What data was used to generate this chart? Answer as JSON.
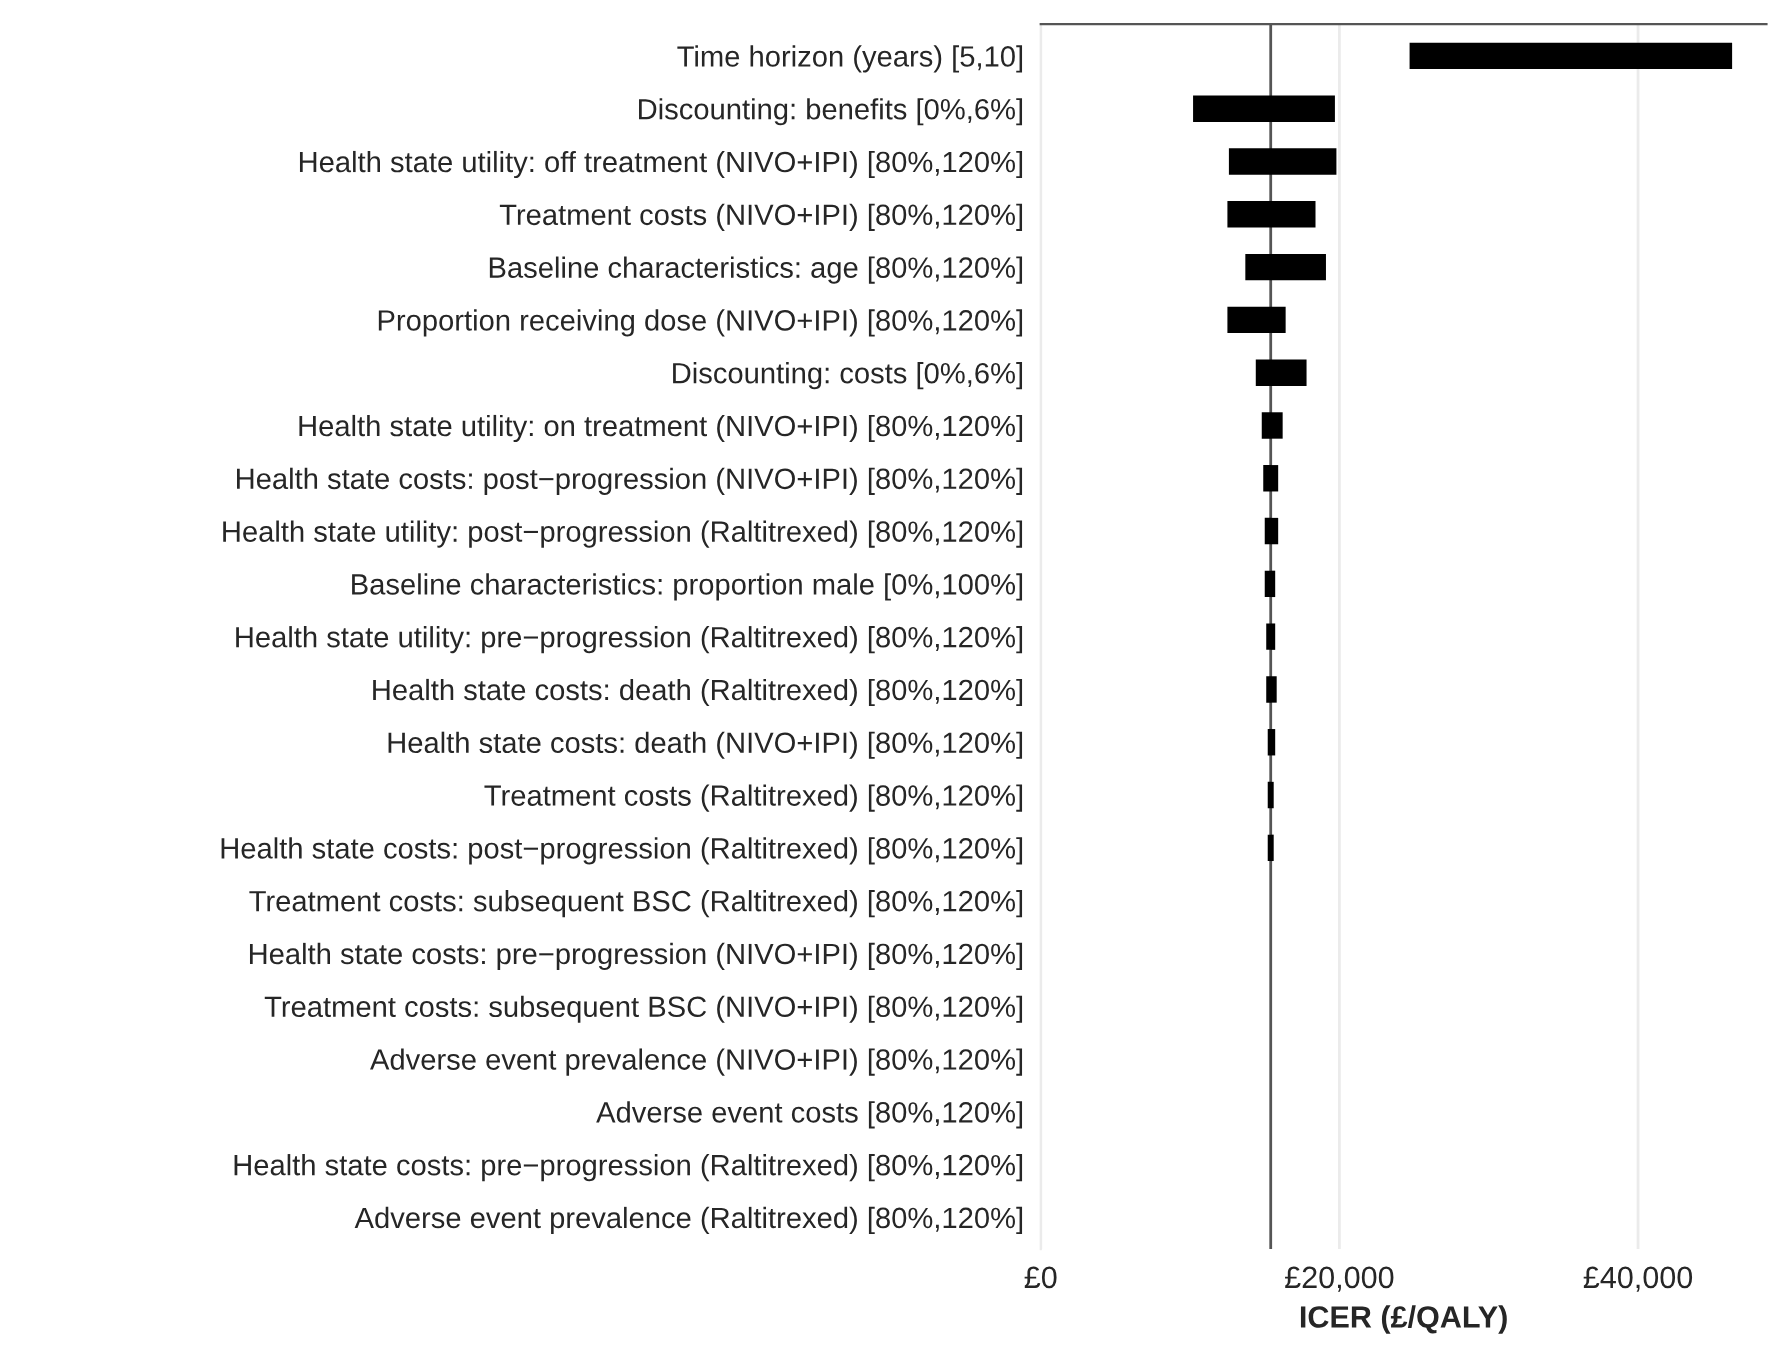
{
  "chart_data": {
    "type": "bar",
    "orientation": "horizontal",
    "xlabel": "ICER (£/QALY)",
    "categories": [
      "Time horizon (years) [5,10]",
      "Discounting: benefits [0%,6%]",
      "Health state utility: off treatment (NIVO+IPI) [80%,120%]",
      "Treatment costs (NIVO+IPI) [80%,120%]",
      "Baseline characteristics: age [80%,120%]",
      "Proportion receiving dose (NIVO+IPI) [80%,120%]",
      "Discounting: costs [0%,6%]",
      "Health state utility: on treatment (NIVO+IPI) [80%,120%]",
      "Health state costs: post−progression (NIVO+IPI) [80%,120%]",
      "Health state utility: post−progression (Raltitrexed) [80%,120%]",
      "Baseline characteristics: proportion male [0%,100%]",
      "Health state utility: pre−progression (Raltitrexed) [80%,120%]",
      "Health state costs: death (Raltitrexed) [80%,120%]",
      "Health state costs: death (NIVO+IPI) [80%,120%]",
      "Treatment costs (Raltitrexed) [80%,120%]",
      "Health state costs: post−progression (Raltitrexed) [80%,120%]",
      "Treatment costs: subsequent BSC (Raltitrexed) [80%,120%]",
      "Health state costs: pre−progression (NIVO+IPI) [80%,120%]",
      "Treatment costs: subsequent BSC (NIVO+IPI) [80%,120%]",
      "Adverse event prevalence (NIVO+IPI) [80%,120%]",
      "Adverse event costs [80%,120%]",
      "Health state costs: pre−progression (Raltitrexed) [80%,120%]",
      "Adverse event prevalence (Raltitrexed) [80%,120%]"
    ],
    "base": [
      24700,
      10200,
      12600,
      12500,
      13700,
      12500,
      14400,
      14800,
      14900,
      15000,
      15000,
      15100,
      15100,
      15200,
      15200,
      15200,
      null,
      null,
      null,
      null,
      null,
      null,
      null
    ],
    "values": [
      21600,
      9500,
      7200,
      5900,
      5400,
      3900,
      3400,
      1400,
      1000,
      900,
      700,
      600,
      700,
      500,
      400,
      400,
      null,
      null,
      null,
      null,
      null,
      null,
      null
    ],
    "color": "#000000",
    "xlim": [
      0,
      48600
    ],
    "xticks": [
      {
        "value": 0,
        "label": "£0"
      },
      {
        "value": 20000,
        "label": "£20,000"
      },
      {
        "value": 40000,
        "label": "£40,000"
      }
    ],
    "ref_lines": [
      {
        "axis": "x",
        "value": 15400,
        "color": "#555555"
      }
    ],
    "grid": "x"
  }
}
